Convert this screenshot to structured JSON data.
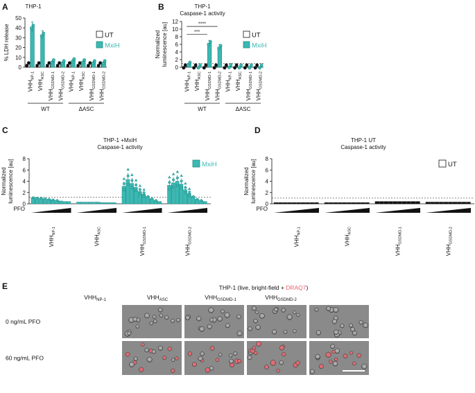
{
  "colors": {
    "teal": "#3bb8b2",
    "teal_dark": "#1f8f8a",
    "ut_fill": "#ffffff",
    "ink": "#111111",
    "pink": "#e8616a",
    "micro_bg": "#8a8a8a"
  },
  "panel_labels": {
    "A": "A",
    "B": "B",
    "C": "C",
    "D": "D",
    "E": "E"
  },
  "legend": {
    "ut": "UT",
    "mxih": "MxiH"
  },
  "groups": {
    "wt": "WT",
    "dasc": "ΔASC"
  },
  "pfo_label": "PFO",
  "vhh": {
    "prefix": "VHH",
    "subs": [
      "NP-1",
      "ASC",
      "GSDMD-1",
      "GSDMD-2"
    ]
  },
  "micrograph": {
    "title_main": "THP-1 (live, bright-field + ",
    "title_red": "DRAQ7",
    "title_close": ")",
    "row_labels": [
      "0 ng/mL PFO",
      "60 ng/mL PFO"
    ]
  },
  "chart_data": [
    {
      "id": "A",
      "type": "bar",
      "title": "THP-1",
      "ylabel": "% LDH release",
      "ylim": [
        0,
        50
      ],
      "yticks": [
        "0",
        "10",
        "20",
        "30",
        "40",
        "50"
      ],
      "categories": [
        "VHH NP-1",
        "VHH ASC",
        "VHH GSDMD-1",
        "VHH GSDMD-2",
        "VHH NP-1",
        "VHH ASC",
        "VHH GSDMD-1",
        "VHH GSDMD-2"
      ],
      "groups": [
        "WT",
        "ΔASC"
      ],
      "series": [
        {
          "name": "UT",
          "values": [
            3,
            3,
            3,
            3,
            3,
            3,
            3,
            3
          ]
        },
        {
          "name": "MxiH",
          "values": [
            41,
            33,
            6,
            5,
            7,
            6,
            5,
            5
          ]
        }
      ]
    },
    {
      "id": "B",
      "type": "bar",
      "title": "THP-1",
      "subtitle": "Caspase-1 activity",
      "ylabel": "Normalized luminescence [au]",
      "ylim": [
        0,
        12
      ],
      "yticks": [
        "0",
        "2",
        "4",
        "6",
        "8",
        "10",
        "12"
      ],
      "reference_line": 1,
      "significance": [
        "***",
        "****"
      ],
      "categories": [
        "VHH NP-1",
        "VHH ASC",
        "VHH GSDMD-1",
        "VHH GSDMD-2",
        "VHH NP-1",
        "VHH ASC",
        "VHH GSDMD-1",
        "VHH GSDMD-2"
      ],
      "groups": [
        "WT",
        "ΔASC"
      ],
      "series": [
        {
          "name": "UT",
          "values": [
            0.2,
            0.2,
            0.2,
            0.2,
            0.2,
            0.2,
            0.2,
            0.2
          ]
        },
        {
          "name": "MxiH",
          "values": [
            0.9,
            0.2,
            6.3,
            5.3,
            0.3,
            0.2,
            0.2,
            0.2
          ]
        }
      ]
    },
    {
      "id": "C",
      "type": "bar",
      "title": "THP-1 +MxiH",
      "subtitle": "Caspase-1 activity",
      "ylabel": "Normalized luminescence [au]",
      "ylim": [
        0,
        8
      ],
      "yticks": [
        "0",
        "2",
        "4",
        "6",
        "8"
      ],
      "reference_line": 1.2,
      "legend": "MxiH",
      "xlabel": "PFO",
      "groups": [
        "VHH NP-1",
        "VHH ASC",
        "VHH GSDMD-1",
        "VHH GSDMD-2"
      ],
      "series": [
        {
          "name": "MxiH",
          "values": [
            [
              1.1,
              1.0,
              1.0,
              0.9,
              0.8,
              0.7,
              0.6,
              0.5,
              0.4,
              0.4
            ],
            [
              0.3,
              0.3,
              0.3,
              0.3,
              0.3,
              0.3,
              0.2,
              0.2,
              0.2,
              0.2
            ],
            [
              3.1,
              4.3,
              3.6,
              2.9,
              2.2,
              1.7,
              1.3,
              0.9,
              0.6,
              0.4
            ],
            [
              3.3,
              3.7,
              4.0,
              3.5,
              2.5,
              1.8,
              1.3,
              0.8,
              0.6,
              0.4
            ]
          ]
        }
      ]
    },
    {
      "id": "D",
      "type": "bar",
      "title": "THP-1 UT",
      "subtitle": "Caspase-1 activity",
      "ylabel": "Normalized luminescence [au]",
      "ylim": [
        0,
        8
      ],
      "yticks": [
        "0",
        "2",
        "4",
        "6",
        "8"
      ],
      "reference_line": 1.0,
      "legend": "UT",
      "xlabel": "PFO",
      "groups": [
        "VHH NP-1",
        "VHH ASC",
        "VHH GSDMD-1",
        "VHH GSDMD-2"
      ],
      "series": [
        {
          "name": "UT",
          "values": [
            [
              0.2,
              0.2,
              0.2,
              0.2,
              0.2,
              0.2,
              0.2,
              0.2,
              0.2,
              0.2
            ],
            [
              0.2,
              0.2,
              0.2,
              0.2,
              0.2,
              0.2,
              0.2,
              0.2,
              0.2,
              0.2
            ],
            [
              0.4,
              0.4,
              0.4,
              0.4,
              0.4,
              0.4,
              0.4,
              0.4,
              0.4,
              0.4
            ],
            [
              0.3,
              0.3,
              0.3,
              0.3,
              0.3,
              0.3,
              0.3,
              0.3,
              0.3,
              0.3
            ]
          ]
        }
      ]
    }
  ]
}
